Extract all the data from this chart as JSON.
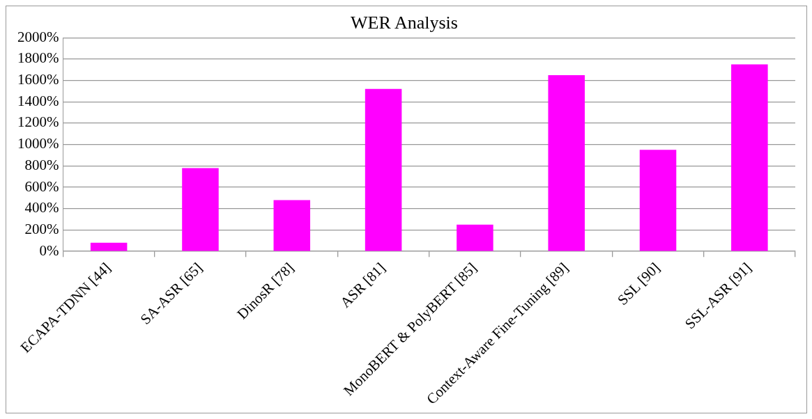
{
  "chart_data": {
    "type": "bar",
    "title": "WER Analysis",
    "categories": [
      "ECAPA-TDNN [44]",
      "SA-ASR [65]",
      "DinosR [78]",
      "ASR [81]",
      "MonoBERT & PolyBERT [85]",
      "Context-Aware Fine-Tuning [89]",
      "SSL [90]",
      "SSL-ASR [91]"
    ],
    "values": [
      80,
      780,
      480,
      1520,
      250,
      1650,
      950,
      1750
    ],
    "color": "#ff00ff",
    "ylim": [
      0,
      2000
    ],
    "yticks": [
      {
        "value": 0,
        "label": "0%"
      },
      {
        "value": 200,
        "label": "200%"
      },
      {
        "value": 400,
        "label": "400%"
      },
      {
        "value": 600,
        "label": "600%"
      },
      {
        "value": 800,
        "label": "800%"
      },
      {
        "value": 1000,
        "label": "1000%"
      },
      {
        "value": 1200,
        "label": "1200%"
      },
      {
        "value": 1400,
        "label": "1400%"
      },
      {
        "value": 1600,
        "label": "1600%"
      },
      {
        "value": 1800,
        "label": "1800%"
      },
      {
        "value": 2000,
        "label": "2000%"
      }
    ],
    "grid": "y",
    "legend": false
  }
}
